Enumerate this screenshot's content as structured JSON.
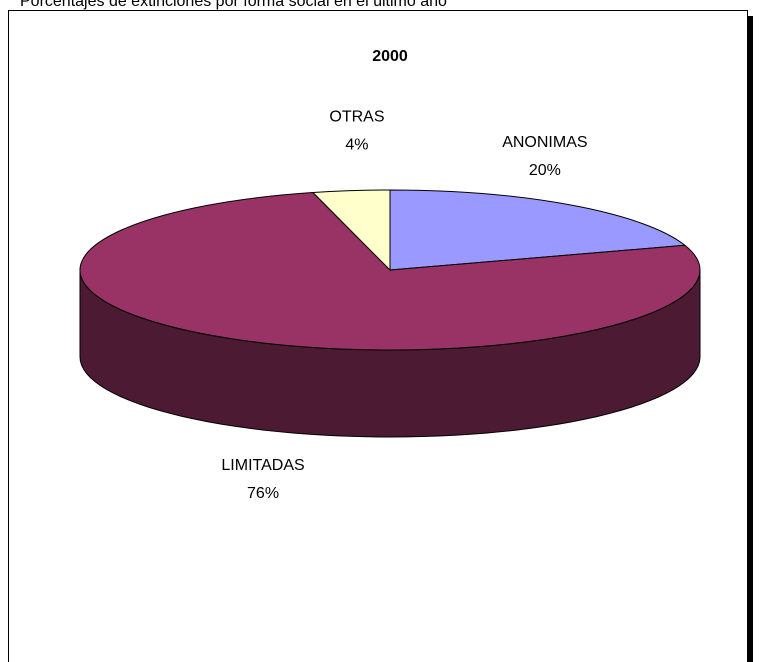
{
  "chart_data": {
    "type": "pie",
    "caption": "Porcentajes de extinciones por forma social en el último año",
    "title": "2000",
    "categories": [
      "ANONIMAS",
      "LIMITADAS",
      "OTRAS"
    ],
    "values": [
      20,
      76,
      4
    ],
    "value_labels": [
      "20%",
      "76%",
      "4%"
    ],
    "colors": [
      "#9999ff",
      "#993366",
      "#ffffcc"
    ],
    "side_colors": [
      "#4d4d80",
      "#4d1a33",
      "#808066"
    ]
  }
}
